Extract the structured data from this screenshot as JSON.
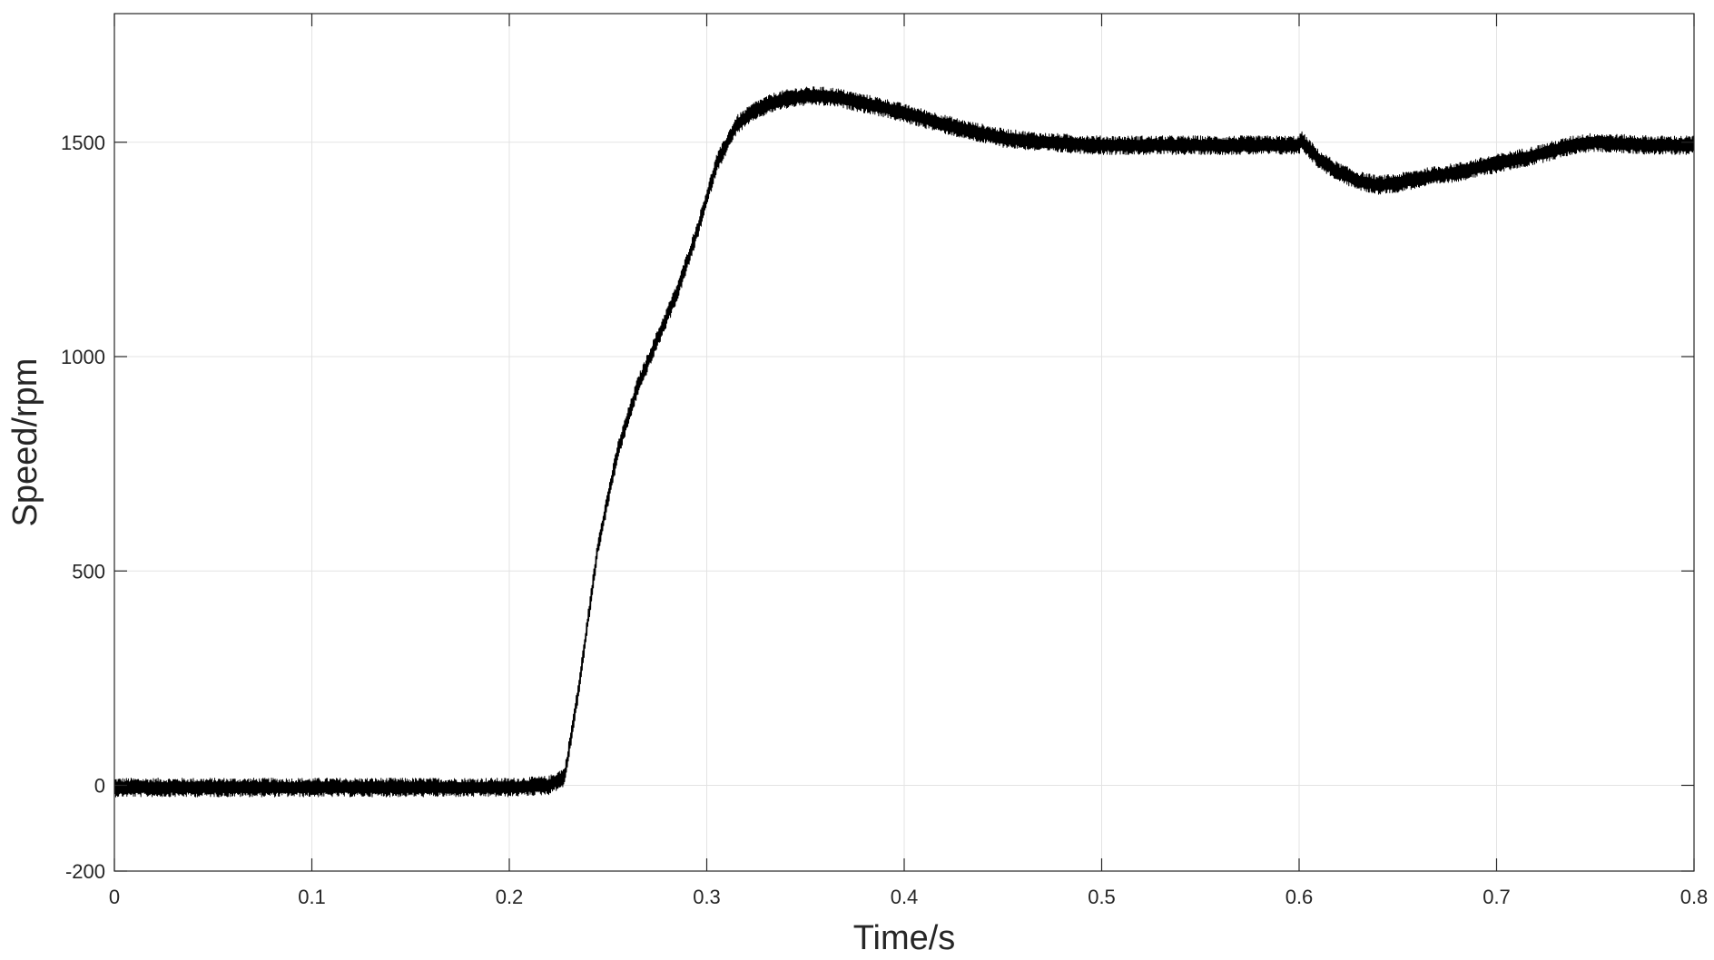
{
  "chart_data": {
    "type": "line",
    "xlabel": "Time/s",
    "ylabel": "Speed/rpm",
    "xlim": [
      0,
      0.8
    ],
    "ylim": [
      -200,
      1800
    ],
    "xticks": [
      0,
      0.1,
      0.2,
      0.3,
      0.4,
      0.5,
      0.6,
      0.7,
      0.8
    ],
    "xtick_labels": [
      "0",
      "0.1",
      "0.2",
      "0.3",
      "0.4",
      "0.5",
      "0.6",
      "0.7",
      "0.8"
    ],
    "yticks": [
      -200,
      0,
      500,
      1000,
      1500
    ],
    "ytick_labels": [
      "-200",
      "0",
      "500",
      "1000",
      "1500"
    ],
    "grid": true,
    "line_color": "#000000",
    "noise_amplitude_rpm": 22,
    "series": [
      {
        "x": [
          0,
          0.05,
          0.1,
          0.15,
          0.2,
          0.22,
          0.228,
          0.235,
          0.245,
          0.255,
          0.265,
          0.275,
          0.285,
          0.295,
          0.305,
          0.315,
          0.325,
          0.335,
          0.345,
          0.355,
          0.365,
          0.375,
          0.39,
          0.41,
          0.43,
          0.45,
          0.47,
          0.5,
          0.55,
          0.58,
          0.6,
          0.601,
          0.61,
          0.62,
          0.63,
          0.64,
          0.65,
          0.66,
          0.68,
          0.7,
          0.72,
          0.74,
          0.75,
          0.76,
          0.78,
          0.8
        ],
        "values": [
          -5,
          -5,
          -5,
          -5,
          -5,
          0,
          20,
          220,
          560,
          780,
          930,
          1040,
          1150,
          1290,
          1450,
          1540,
          1575,
          1595,
          1605,
          1608,
          1605,
          1595,
          1580,
          1555,
          1530,
          1510,
          1500,
          1493,
          1493,
          1493,
          1493,
          1505,
          1460,
          1430,
          1410,
          1400,
          1405,
          1415,
          1430,
          1450,
          1470,
          1495,
          1500,
          1497,
          1493,
          1493
        ]
      }
    ]
  }
}
